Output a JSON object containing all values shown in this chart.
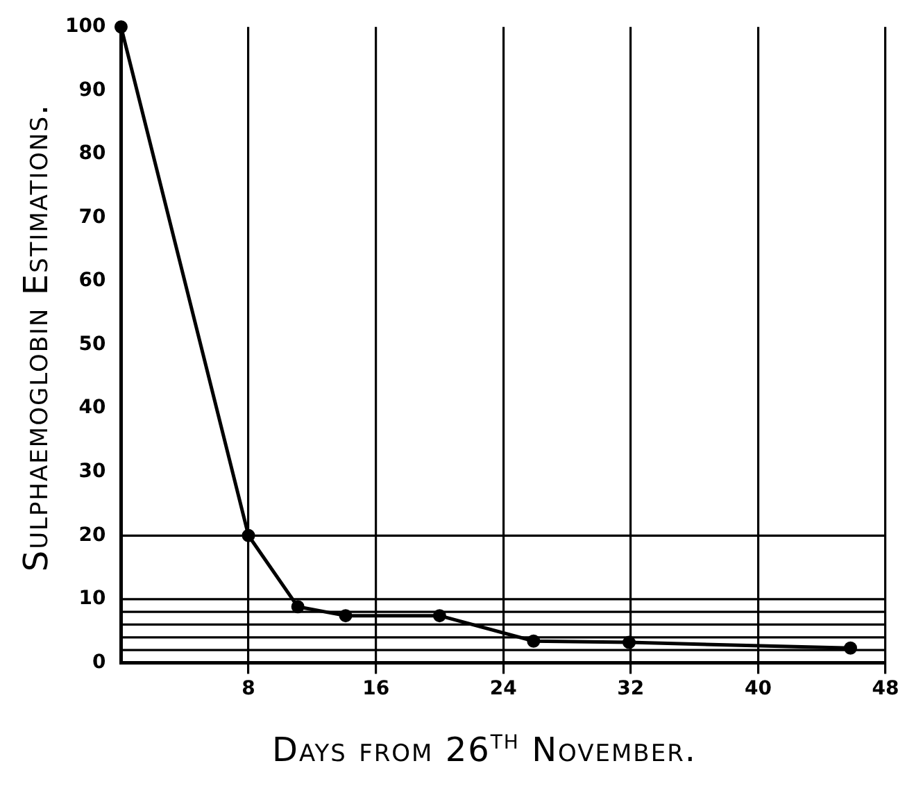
{
  "chart_data": {
    "type": "line",
    "xlabel": "Days from 26$^{th}$ November.",
    "ylabel": "Sulphaemoglobin Estimations.",
    "x": [
      0,
      8,
      11.1,
      14.1,
      20,
      25.9,
      31.9,
      45.8
    ],
    "series": [
      {
        "color": "#000000",
        "values": [
          100,
          20,
          8.8,
          7.4,
          7.4,
          3.4,
          3.2,
          2.3
        ]
      }
    ],
    "xlim": [
      0,
      48
    ],
    "xticks": [
      8,
      16,
      24,
      32,
      40,
      48
    ],
    "ylim": [
      0,
      100
    ],
    "yticks": [
      0,
      10,
      20,
      30,
      40,
      50,
      60,
      70,
      80,
      90,
      100
    ],
    "grid": "x",
    "marker": "circle",
    "line_style": "solid",
    "legend": false,
    "ref_lines": [
      {
        "axis": "y",
        "value": 20
      },
      {
        "axis": "y",
        "value": 10
      },
      {
        "axis": "y",
        "value": 8
      },
      {
        "axis": "y",
        "value": 6
      },
      {
        "axis": "y",
        "value": 4
      },
      {
        "axis": "y",
        "value": 2
      }
    ]
  }
}
